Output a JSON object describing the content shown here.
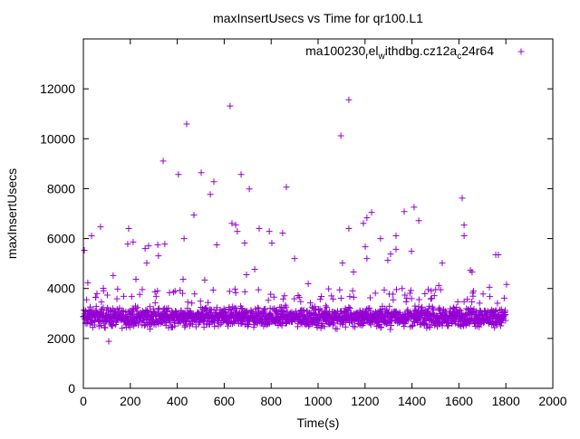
{
  "chart_data": {
    "type": "scatter",
    "title": "maxInsertUsecs vs Time for qr100.L1",
    "xlabel": "Time(s)",
    "ylabel": "maxInsertUsecs",
    "xlim": [
      0,
      2000
    ],
    "ylim": [
      0,
      14000
    ],
    "xticks": [
      0,
      200,
      400,
      600,
      800,
      1000,
      1200,
      1400,
      1600,
      1800,
      2000
    ],
    "yticks": [
      0,
      2000,
      4000,
      6000,
      8000,
      10000,
      12000
    ],
    "grid": false,
    "legend_position": "top-right",
    "series": [
      {
        "name": "ma100230_rel_withdbg.cz12a_c24r64",
        "color": "#9400D3",
        "marker": "plus",
        "dense_band": {
          "x_range": [
            0,
            1800
          ],
          "count": 1800,
          "y_median": 2800,
          "y_spread": [
            2300,
            3400
          ],
          "upper_tail": 4000
        },
        "outliers": [
          [
            4,
            5530
          ],
          [
            19,
            4230
          ],
          [
            35,
            6110
          ],
          [
            73,
            6470
          ],
          [
            85,
            4010
          ],
          [
            108,
            1880
          ],
          [
            127,
            4520
          ],
          [
            189,
            5780
          ],
          [
            193,
            6400
          ],
          [
            212,
            5860
          ],
          [
            224,
            4370
          ],
          [
            263,
            5600
          ],
          [
            270,
            5020
          ],
          [
            278,
            5710
          ],
          [
            317,
            5750
          ],
          [
            320,
            5310
          ],
          [
            340,
            9110
          ],
          [
            347,
            5780
          ],
          [
            367,
            3830
          ],
          [
            405,
            8570
          ],
          [
            425,
            4370
          ],
          [
            429,
            6000
          ],
          [
            440,
            10590
          ],
          [
            471,
            6940
          ],
          [
            502,
            8640
          ],
          [
            517,
            4340
          ],
          [
            541,
            7770
          ],
          [
            556,
            8280
          ],
          [
            568,
            5750
          ],
          [
            625,
            11310
          ],
          [
            633,
            6610
          ],
          [
            649,
            6540
          ],
          [
            656,
            6290
          ],
          [
            672,
            8570
          ],
          [
            687,
            5820
          ],
          [
            707,
            7990
          ],
          [
            695,
            4550
          ],
          [
            730,
            4770
          ],
          [
            749,
            6400
          ],
          [
            792,
            6290
          ],
          [
            803,
            5820
          ],
          [
            849,
            6220
          ],
          [
            865,
            8060
          ],
          [
            900,
            5200
          ],
          [
            958,
            4190
          ],
          [
            1097,
            10120
          ],
          [
            1104,
            5020
          ],
          [
            1131,
            11560
          ],
          [
            1131,
            6400
          ],
          [
            1151,
            4660
          ],
          [
            1193,
            6610
          ],
          [
            1208,
            6830
          ],
          [
            1228,
            7050
          ],
          [
            1201,
            5670
          ],
          [
            1208,
            5200
          ],
          [
            1266,
            6000
          ],
          [
            1297,
            5130
          ],
          [
            1309,
            5380
          ],
          [
            1332,
            6110
          ],
          [
            1332,
            5570
          ],
          [
            1367,
            7080
          ],
          [
            1398,
            5490
          ],
          [
            1409,
            7260
          ],
          [
            1429,
            6720
          ],
          [
            1529,
            5020
          ],
          [
            1514,
            4120
          ],
          [
            1614,
            7620
          ],
          [
            1622,
            6540
          ],
          [
            1622,
            6110
          ],
          [
            1649,
            4730
          ],
          [
            1656,
            4660
          ],
          [
            1730,
            4050
          ],
          [
            1757,
            5350
          ],
          [
            1768,
            5350
          ],
          [
            1803,
            4160
          ]
        ]
      }
    ]
  }
}
